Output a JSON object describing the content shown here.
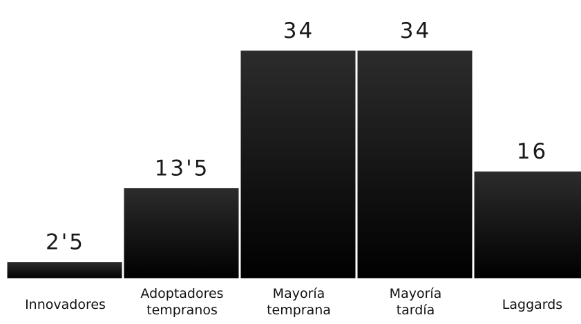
{
  "chart_data": {
    "type": "bar",
    "categories": [
      [
        "Innovadores"
      ],
      [
        "Adoptadores",
        "tempranos"
      ],
      [
        "Mayoría",
        "temprana"
      ],
      [
        "Mayoría",
        "tardía"
      ],
      [
        "Laggards"
      ]
    ],
    "values": [
      2.5,
      13.5,
      34,
      34,
      16
    ],
    "value_labels": [
      "2'5",
      "13'5",
      "34",
      "34",
      "16"
    ],
    "title": "",
    "xlabel": "",
    "ylabel": "",
    "ylim": [
      0,
      34
    ],
    "grid": false,
    "legend": "none",
    "bar_gradient": [
      "#2c2c2c",
      "#000000"
    ],
    "bar_gap_color": "#ffffff"
  }
}
